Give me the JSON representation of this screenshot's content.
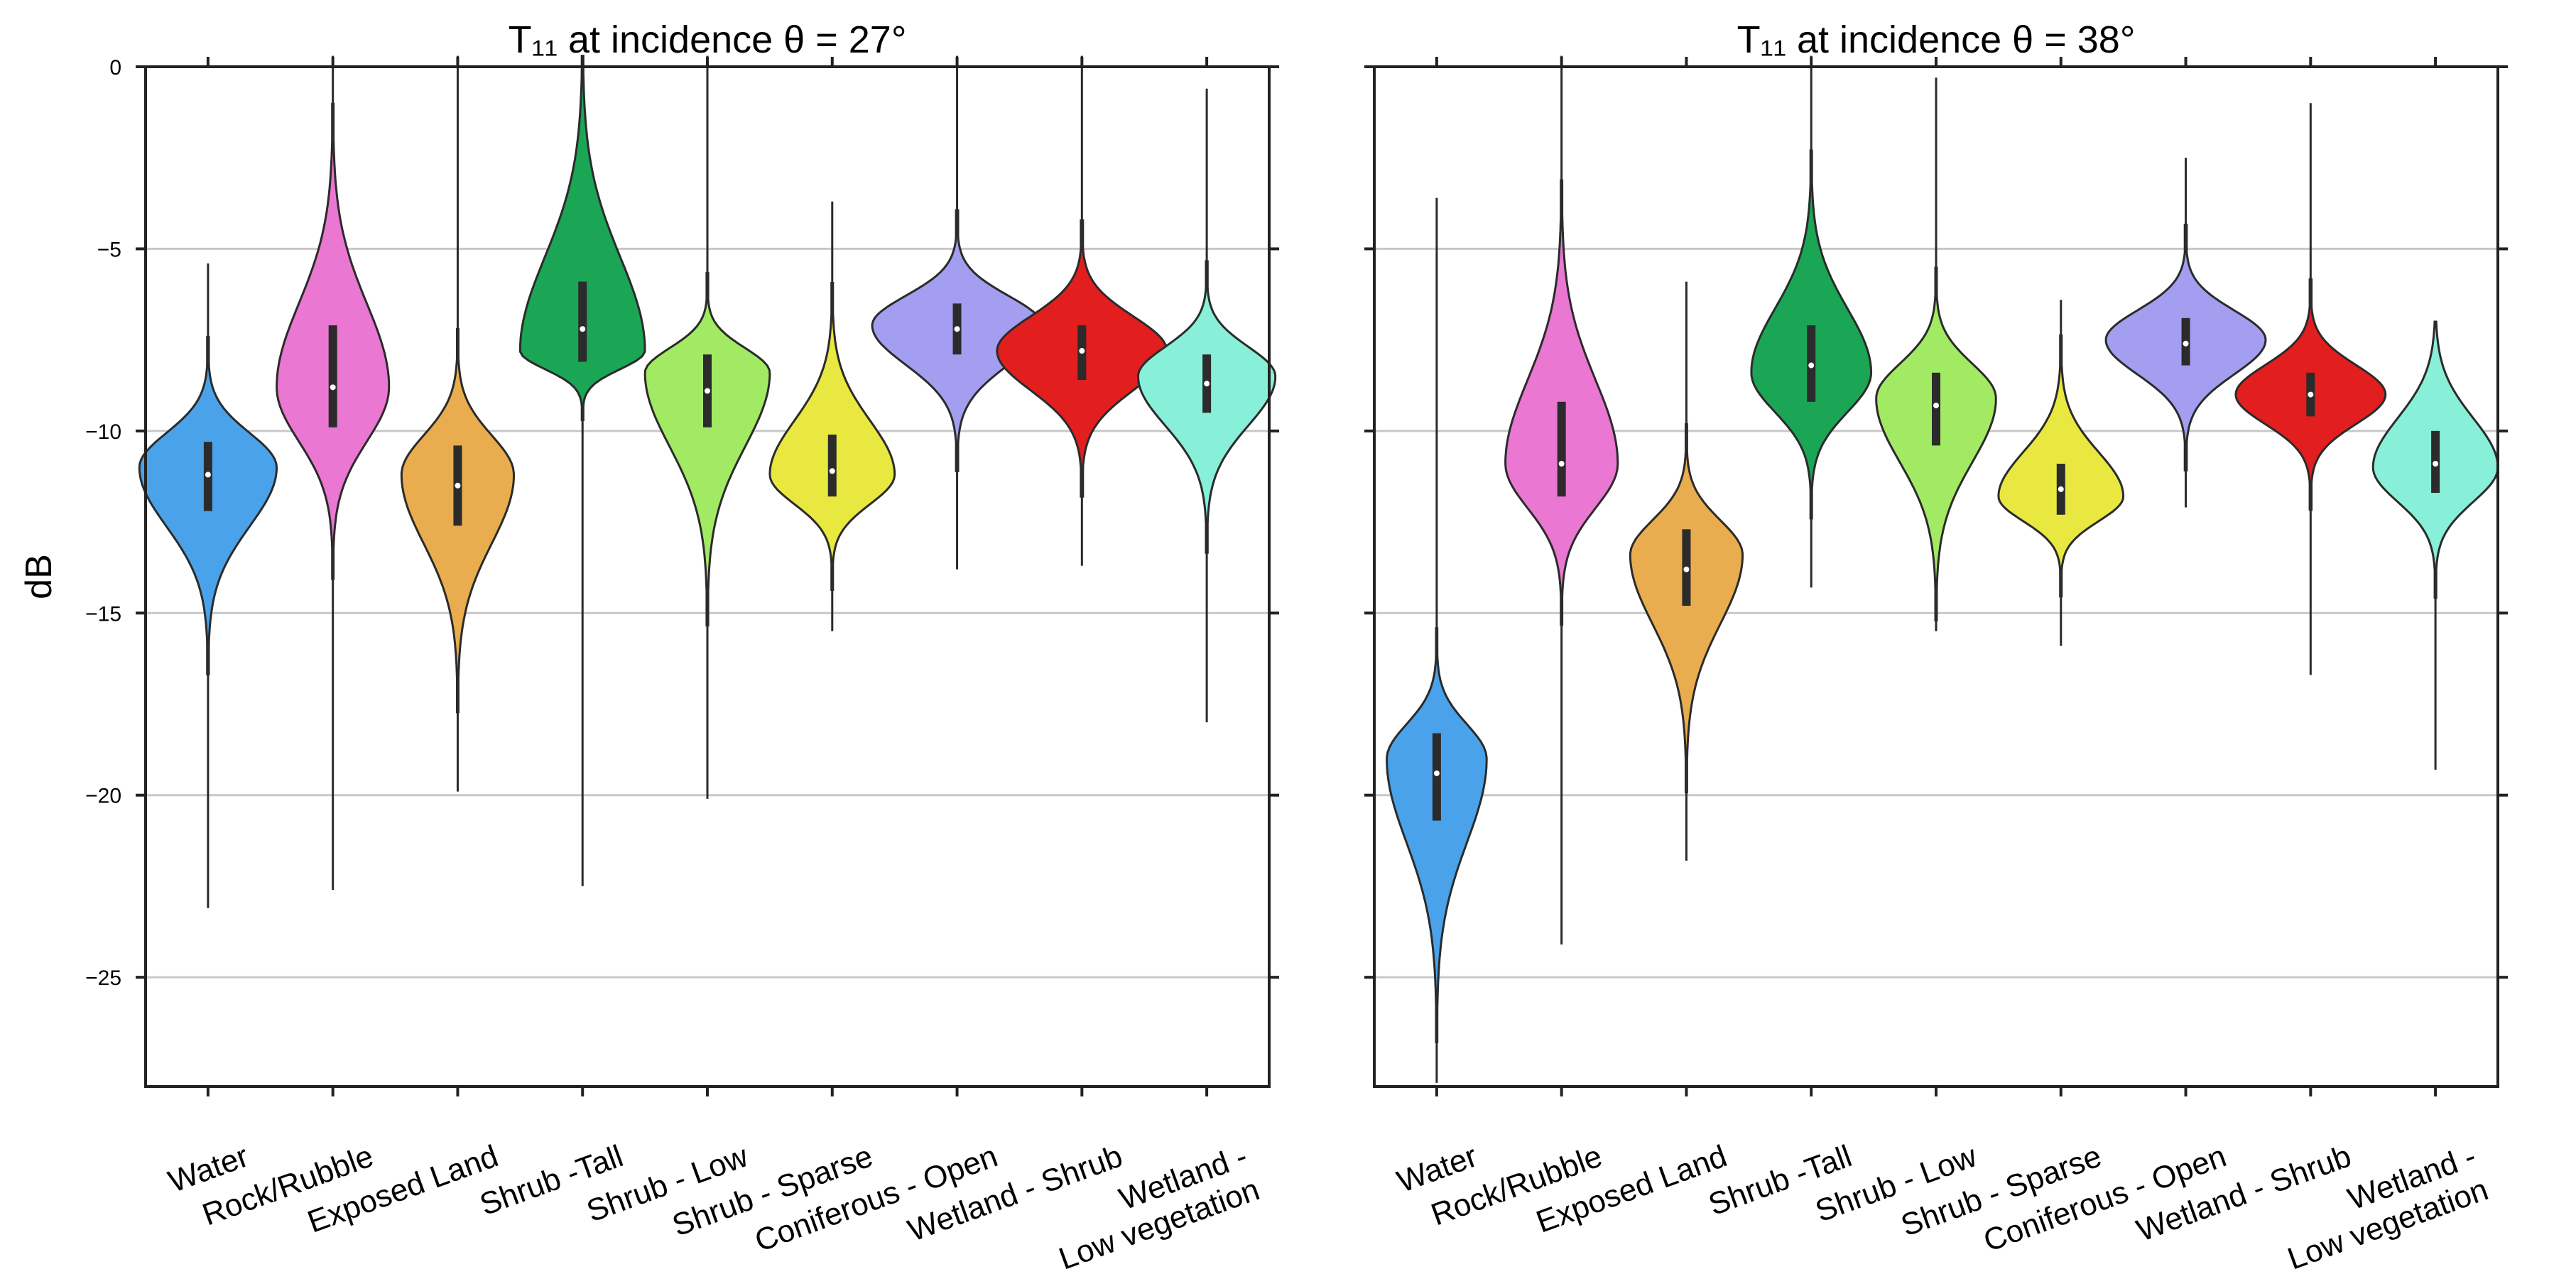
{
  "chart_data": [
    {
      "type": "violin",
      "title": "T₁₁ at incidence θ = 27°",
      "ylabel": "dB",
      "ylim": [
        -28,
        0
      ],
      "yticks": [
        0,
        -5,
        -10,
        -15,
        -20,
        -25
      ],
      "grid": "horizontal",
      "categories": [
        "Water",
        "Rock/Rubble",
        "Exposed Land",
        "Shrub -Tall",
        "Shrub - Low",
        "Shrub - Sparse",
        "Coniferous - Open",
        "Wetland - Shrub",
        "Wetland -\nLow vegetation"
      ],
      "colors": [
        "#4aa3ea",
        "#ea77d2",
        "#e9ad4f",
        "#1aa655",
        "#a3ea64",
        "#e8e840",
        "#a49ef1",
        "#e31e1e",
        "#88efd8"
      ],
      "distributions": [
        {
          "min": -23.1,
          "max": -5.4,
          "q1": -12.2,
          "median": -11.2,
          "q3": -10.3,
          "peak": -11.0,
          "halfwidth": 0.55
        },
        {
          "min": -22.6,
          "max": 0.3,
          "q1": -9.9,
          "median": -8.8,
          "q3": -7.1,
          "peak": -8.8,
          "halfwidth": 0.45
        },
        {
          "min": -19.9,
          "max": 0.3,
          "q1": -12.6,
          "median": -11.5,
          "q3": -10.4,
          "peak": -11.2,
          "halfwidth": 0.45
        },
        {
          "min": -22.5,
          "max": 0.3,
          "q1": -8.1,
          "median": -7.2,
          "q3": -5.9,
          "peak": -7.8,
          "halfwidth": 0.5
        },
        {
          "min": -20.1,
          "max": 0.3,
          "q1": -9.9,
          "median": -8.9,
          "q3": -7.9,
          "peak": -8.4,
          "halfwidth": 0.5
        },
        {
          "min": -15.5,
          "max": -3.7,
          "q1": -11.8,
          "median": -11.1,
          "q3": -10.1,
          "peak": -11.2,
          "halfwidth": 0.5
        },
        {
          "min": -13.8,
          "max": 0.3,
          "q1": -7.9,
          "median": -7.2,
          "q3": -6.5,
          "peak": -7.1,
          "halfwidth": 0.68
        },
        {
          "min": -13.7,
          "max": 0.3,
          "q1": -8.6,
          "median": -7.8,
          "q3": -7.1,
          "peak": -7.8,
          "halfwidth": 0.68
        },
        {
          "min": -18.0,
          "max": -0.6,
          "q1": -9.5,
          "median": -8.7,
          "q3": -7.9,
          "peak": -8.5,
          "halfwidth": 0.55
        }
      ]
    },
    {
      "type": "violin",
      "title": "T₁₁ at incidence θ = 38°",
      "ylabel": "",
      "ylim": [
        -28,
        0
      ],
      "yticks": [
        0,
        -5,
        -10,
        -15,
        -20,
        -25
      ],
      "grid": "horizontal",
      "categories": [
        "Water",
        "Rock/Rubble",
        "Exposed Land",
        "Shrub -Tall",
        "Shrub - Low",
        "Shrub - Sparse",
        "Coniferous - Open",
        "Wetland - Shrub",
        "Wetland -\nLow vegetation"
      ],
      "colors": [
        "#4aa3ea",
        "#ea77d2",
        "#e9ad4f",
        "#1aa655",
        "#a3ea64",
        "#e8e840",
        "#a49ef1",
        "#e31e1e",
        "#88efd8"
      ],
      "distributions": [
        {
          "min": -27.9,
          "max": -3.6,
          "q1": -20.7,
          "median": -19.4,
          "q3": -18.3,
          "peak": -19.0,
          "halfwidth": 0.4
        },
        {
          "min": -24.1,
          "max": 0.3,
          "q1": -11.8,
          "median": -10.9,
          "q3": -9.2,
          "peak": -10.9,
          "halfwidth": 0.45
        },
        {
          "min": -21.8,
          "max": -5.9,
          "q1": -14.8,
          "median": -13.8,
          "q3": -12.7,
          "peak": -13.4,
          "halfwidth": 0.45
        },
        {
          "min": -14.3,
          "max": 0.3,
          "q1": -9.2,
          "median": -8.2,
          "q3": -7.1,
          "peak": -8.4,
          "halfwidth": 0.48
        },
        {
          "min": -15.5,
          "max": -0.3,
          "q1": -10.4,
          "median": -9.3,
          "q3": -8.4,
          "peak": -9.1,
          "halfwidth": 0.48
        },
        {
          "min": -15.9,
          "max": -6.4,
          "q1": -12.3,
          "median": -11.6,
          "q3": -10.9,
          "peak": -11.8,
          "halfwidth": 0.5
        },
        {
          "min": -12.1,
          "max": -2.5,
          "q1": -8.2,
          "median": -7.6,
          "q3": -6.9,
          "peak": -7.5,
          "halfwidth": 0.64
        },
        {
          "min": -16.7,
          "max": -1.0,
          "q1": -9.6,
          "median": -9.0,
          "q3": -8.4,
          "peak": -9.0,
          "halfwidth": 0.6
        },
        {
          "min": -19.3,
          "max": -7.0,
          "q1": -11.7,
          "median": -10.9,
          "q3": -10.0,
          "peak": -11.0,
          "halfwidth": 0.5
        }
      ]
    }
  ]
}
